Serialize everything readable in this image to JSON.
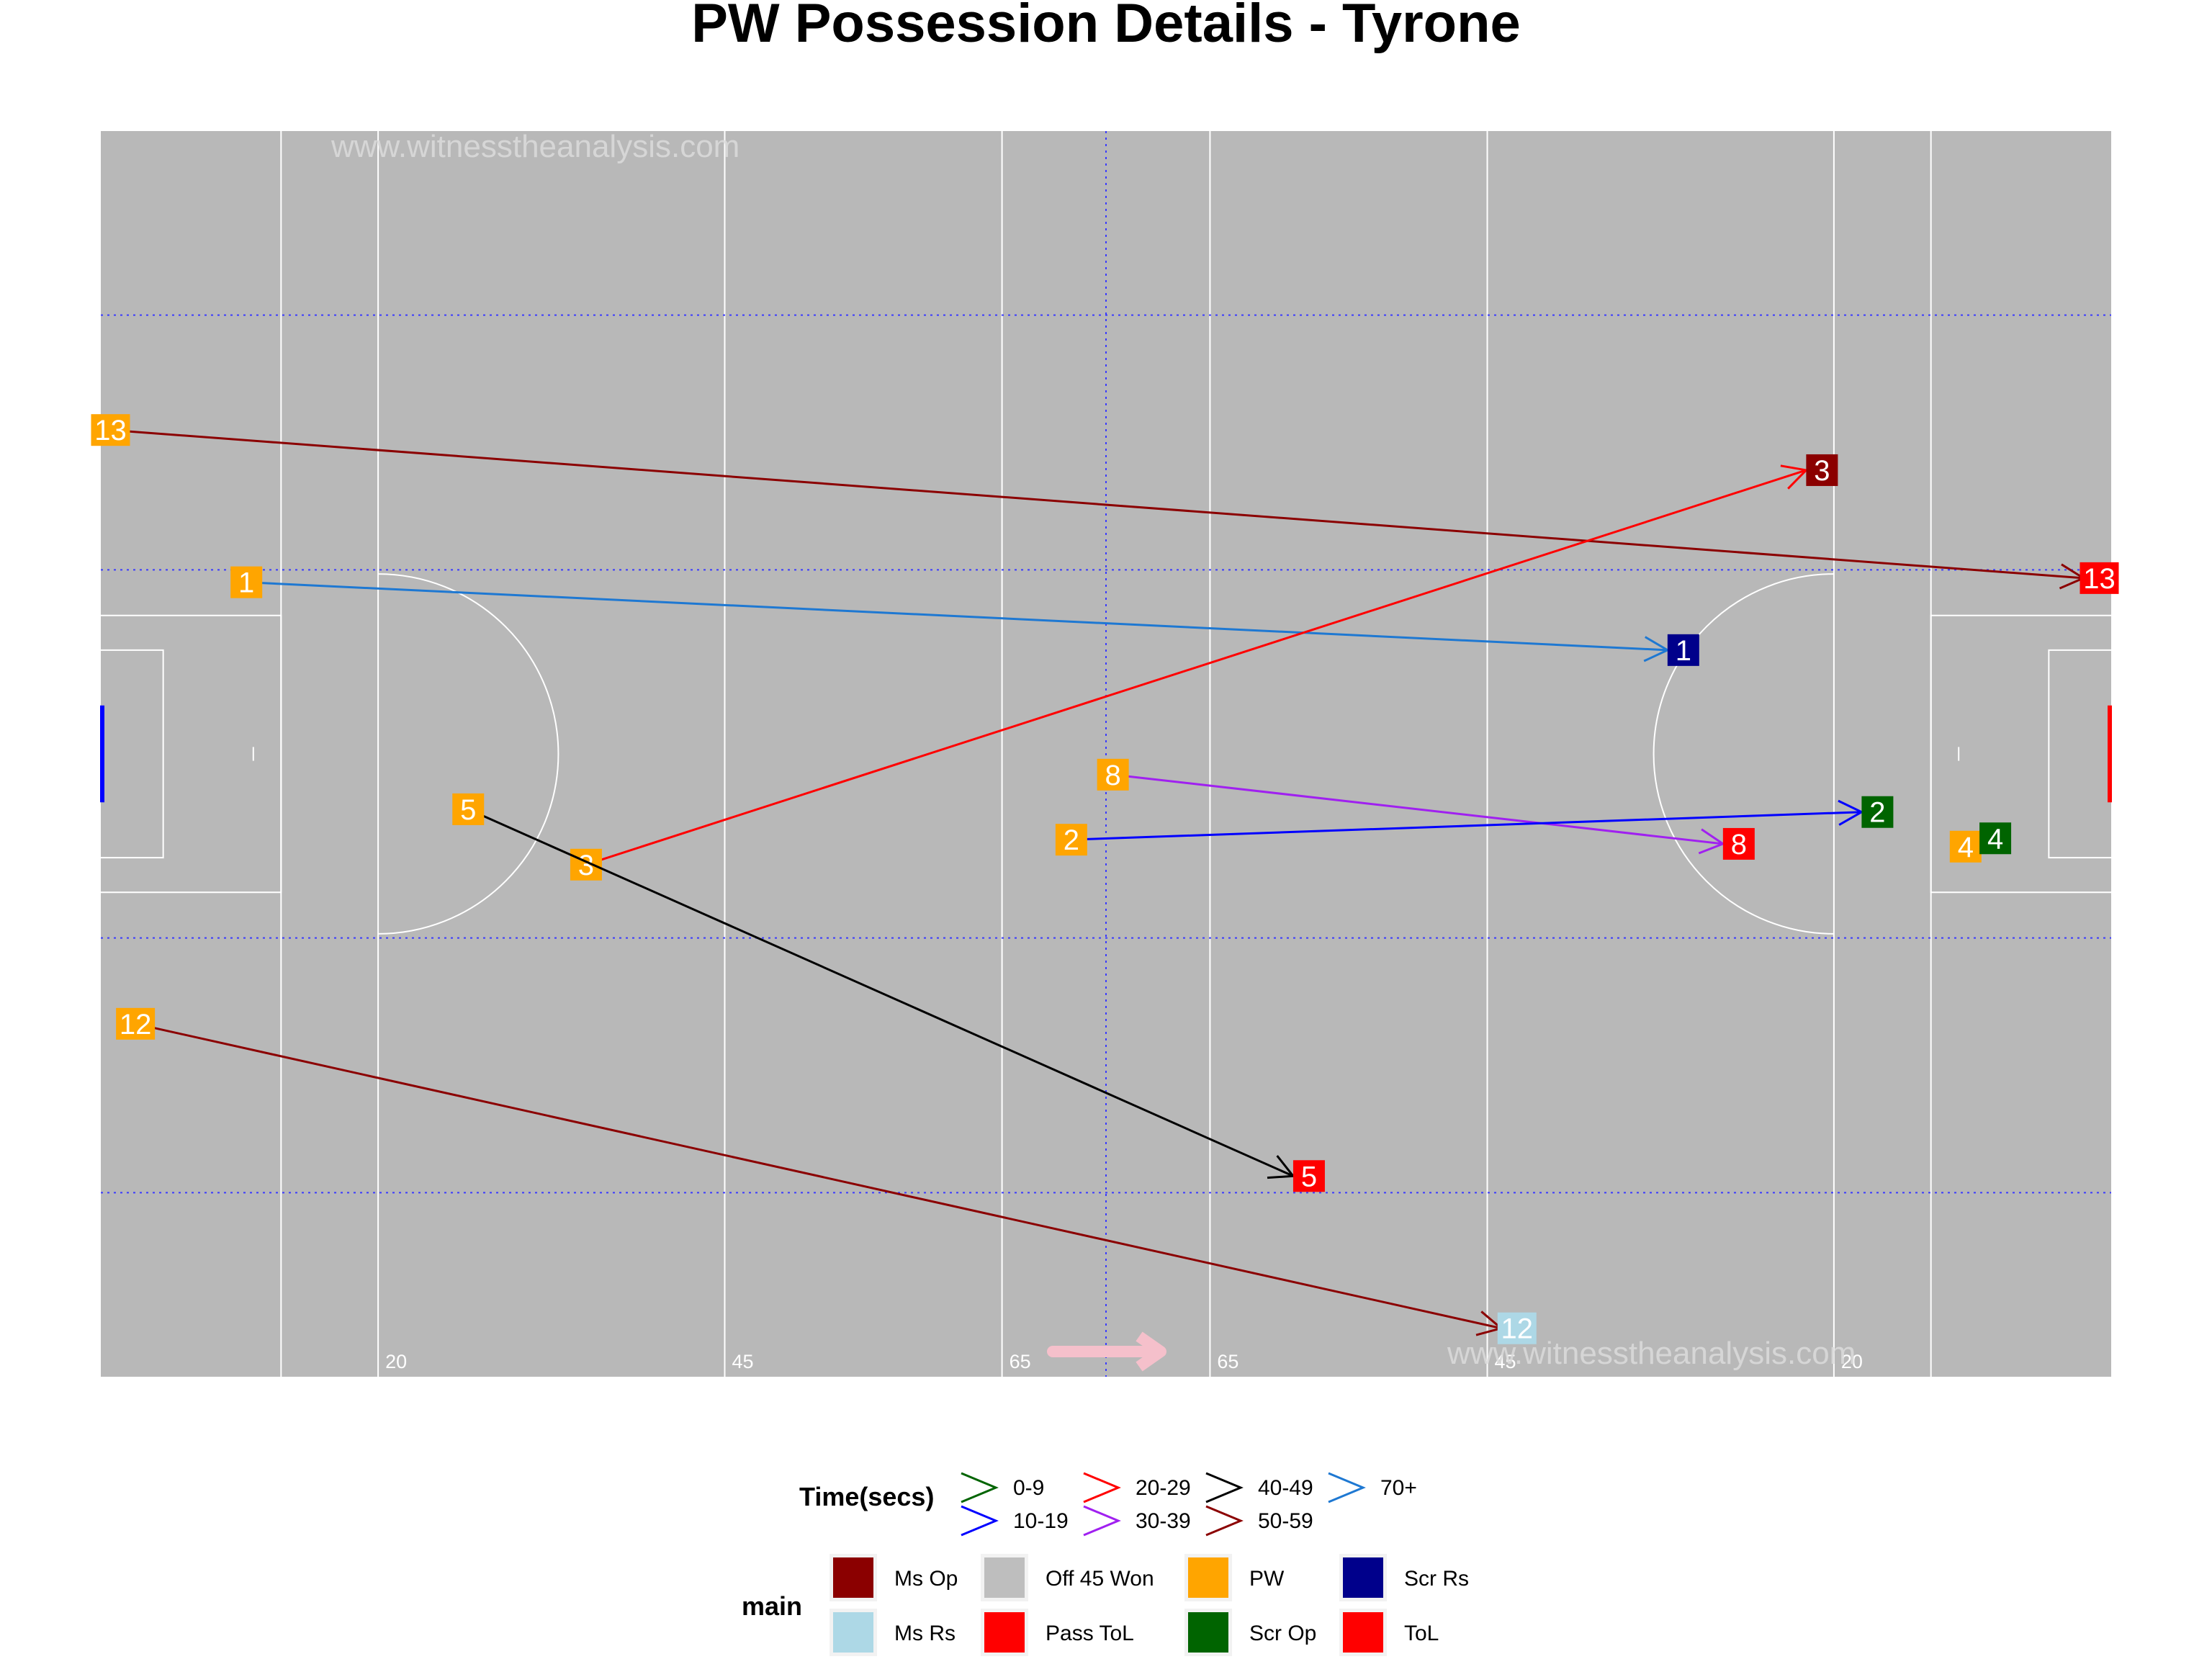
{
  "chart_data": {
    "type": "scatter",
    "title": "PW Possession Details - Tyrone",
    "watermark": "www.witnesstheanalysis.com",
    "xlim": [
      0,
      145
    ],
    "ylim": [
      0,
      90
    ],
    "pitch_markings": [
      {
        "label": "20",
        "x": 20
      },
      {
        "label": "45",
        "x": 45
      },
      {
        "label": "65",
        "x": 65
      },
      {
        "label": "65",
        "x": 80
      },
      {
        "label": "45",
        "x": 100
      },
      {
        "label": "20",
        "x": 125
      }
    ],
    "possessions": [
      {
        "id": "13",
        "start": [
          0.7,
          68.4
        ],
        "end": [
          143,
          57.7
        ],
        "time_band": "50-59",
        "outcome": "ToL"
      },
      {
        "id": "1",
        "start": [
          10.5,
          57.4
        ],
        "end": [
          113,
          52.5
        ],
        "time_band": "70+",
        "outcome": "Scr Rs"
      },
      {
        "id": "3",
        "start": [
          35,
          37
        ],
        "end": [
          123,
          65.5
        ],
        "time_band": "20-29",
        "outcome": "Ms Op"
      },
      {
        "id": "5",
        "start": [
          26.5,
          41
        ],
        "end": [
          86,
          14.5
        ],
        "time_band": "40-49",
        "outcome": "Pass ToL"
      },
      {
        "id": "8",
        "start": [
          73,
          43.5
        ],
        "end": [
          117,
          38.5
        ],
        "time_band": "30-39",
        "outcome": "Pass ToL"
      },
      {
        "id": "2",
        "start": [
          70,
          38.8
        ],
        "end": [
          127,
          40.8
        ],
        "time_band": "10-19",
        "outcome": "Scr Op"
      },
      {
        "id": "4",
        "start": [
          134.5,
          38.3
        ],
        "end": [
          135.5,
          38.9
        ],
        "time_band": "0-9",
        "outcome": "Scr Op"
      },
      {
        "id": "12",
        "start": [
          2.5,
          25.5
        ],
        "end": [
          101,
          3.5
        ],
        "time_band": "50-59",
        "outcome": "Ms Rs"
      }
    ],
    "legend_time": {
      "title": "Time(secs)",
      "entries": [
        {
          "label": "0-9",
          "color": "#006400"
        },
        {
          "label": "10-19",
          "color": "#0000ff"
        },
        {
          "label": "20-29",
          "color": "#ff0000"
        },
        {
          "label": "30-39",
          "color": "#a020f0"
        },
        {
          "label": "40-49",
          "color": "#000000"
        },
        {
          "label": "50-59",
          "color": "#8b0000"
        },
        {
          "label": "70+",
          "color": "#1e78d2"
        }
      ]
    },
    "legend_main": {
      "title": "main",
      "entries": [
        {
          "label": "Ms Op",
          "color": "#8b0000"
        },
        {
          "label": "Ms Rs",
          "color": "#add8e6"
        },
        {
          "label": "Off 45 Won",
          "color": "#bebebe"
        },
        {
          "label": "Pass ToL",
          "color": "#ff0000"
        },
        {
          "label": "PW",
          "color": "#ffa500"
        },
        {
          "label": "Scr Op",
          "color": "#006400"
        },
        {
          "label": "Scr Rs",
          "color": "#00008b"
        },
        {
          "label": "ToL",
          "color": "#ff0000"
        }
      ]
    }
  }
}
